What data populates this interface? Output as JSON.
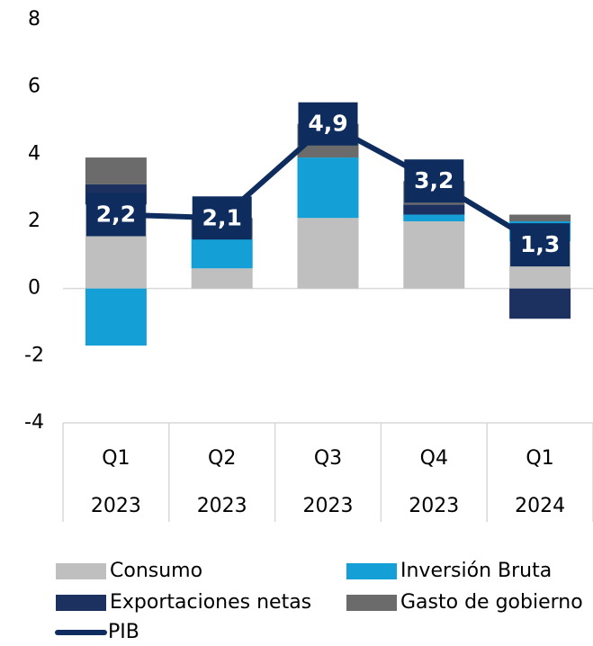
{
  "chart_data": {
    "type": "stacked-bar-line",
    "categories": [
      "Q1",
      "Q2",
      "Q3",
      "Q4",
      "Q1"
    ],
    "sub_categories": [
      "2023",
      "2023",
      "2023",
      "2023",
      "2024"
    ],
    "series": [
      {
        "name": "Consumo",
        "color": "#bfbfbf",
        "values": [
          2.5,
          0.6,
          2.1,
          2.0,
          1.4
        ]
      },
      {
        "name": "Inversión Bruta",
        "color": "#14a0d6",
        "values": [
          -1.7,
          0.9,
          1.8,
          0.2,
          0.6
        ]
      },
      {
        "name": "Exportaciones netas",
        "color": "#1c3160",
        "values": [
          0.6,
          0,
          0,
          0.3,
          -0.9
        ]
      },
      {
        "name": "Gasto de gobierno",
        "color": "#6b6b6b",
        "values": [
          0.8,
          0.6,
          1.0,
          0.7,
          0.2
        ]
      }
    ],
    "line": {
      "name": "PIB",
      "color": "#0e2d5e",
      "values": [
        2.2,
        2.1,
        4.9,
        3.2,
        1.3
      ],
      "value_labels": [
        "2,2",
        "2,1",
        "4,9",
        "3,2",
        "1,3"
      ]
    },
    "ylim": [
      -4,
      8
    ],
    "yticks": [
      -4,
      -2,
      0,
      2,
      4,
      6,
      8
    ]
  }
}
